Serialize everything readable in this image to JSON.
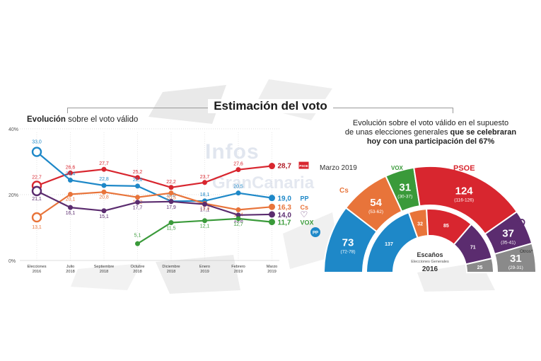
{
  "header": {
    "title": "Estimación del voto",
    "left_subtitle_bold": "Evolución",
    "left_subtitle_rest": "sobre el voto válido",
    "right_subtitle_line1": "Evolución sobre el voto válido en el supuesto",
    "right_subtitle_line2_a": "de unas elecciones generales",
    "right_subtitle_line2_b": "que se celebraran",
    "right_subtitle_line3": "hoy con una participación del 67%"
  },
  "watermark": {
    "line1": "Infos",
    "line2": "GranCanaria"
  },
  "colors": {
    "psoe": "#d8262f",
    "pp": "#1e88c8",
    "cs": "#e8743a",
    "podemos": "#5b2c6f",
    "vox": "#3a9a3a",
    "otros": "#8a8a8a",
    "grid": "#bbbbbb"
  },
  "chart_data": [
    {
      "type": "line",
      "y_ticks": [
        "40%",
        "20%",
        "0%"
      ],
      "ylim": [
        0,
        40
      ],
      "categories": [
        "Elecciones 2016",
        "Julio 2018",
        "Septiembre 2018",
        "Octubre 2018",
        "Diciembre 2018",
        "Enero 2019",
        "Febrero 2019",
        "Marzo 2019"
      ],
      "series": [
        {
          "name": "PSOE",
          "color": "#d8262f",
          "values": [
            22.7,
            26.6,
            27.7,
            25.2,
            22.2,
            23.7,
            27.6,
            28.7
          ],
          "labels": [
            "22,7",
            "26,6",
            "27,7",
            "25,2",
            "22,2",
            "23,7",
            "27,6",
            "28,7"
          ],
          "end_label": "PSOE"
        },
        {
          "name": "PP",
          "color": "#1e88c8",
          "values": [
            33.0,
            24.4,
            22.8,
            22.6,
            18.0,
            18.1,
            20.5,
            19.0
          ],
          "labels": [
            "33,0",
            "24,4",
            "22,8",
            "22,6",
            "18,0",
            "18,1",
            "20,5",
            "19,0"
          ],
          "end_label": "PP"
        },
        {
          "name": "Cs",
          "color": "#e8743a",
          "values": [
            13.1,
            20.1,
            20.8,
            19.2,
            20.5,
            17.3,
            15.4,
            16.3
          ],
          "labels": [
            "13,1",
            "20,1",
            "20,8",
            "19,2",
            "20,5",
            "17,3",
            "15,4",
            "16,3"
          ],
          "end_label": "Cs"
        },
        {
          "name": "Podemos",
          "color": "#5b2c6f",
          "values": [
            21.1,
            16.1,
            15.1,
            17.7,
            17.9,
            17.1,
            13.8,
            14.0
          ],
          "labels": [
            "21,1",
            "16,1",
            "15,1",
            "17,7",
            "17,9",
            "17,1",
            "13,8",
            "14,0"
          ],
          "end_label": "♡"
        },
        {
          "name": "VOX",
          "color": "#3a9a3a",
          "values": [
            null,
            null,
            null,
            5.1,
            11.5,
            12.1,
            12.7,
            11.7
          ],
          "labels": [
            "",
            "",
            "",
            "5,1",
            "11,5",
            "12,1",
            "12,7",
            "11,7"
          ],
          "end_label": "VOX"
        }
      ]
    },
    {
      "type": "pie",
      "subtitle": "Marzo 2019",
      "outer_ring": [
        {
          "party": "PP",
          "seats": 73,
          "range": "(72-78)",
          "color": "#1e88c8"
        },
        {
          "party": "Cs",
          "seats": 54,
          "range": "(53-62)",
          "color": "#e8743a"
        },
        {
          "party": "VOX",
          "seats": 31,
          "range": "(30-37)",
          "color": "#3a9a3a"
        },
        {
          "party": "PSOE",
          "seats": 124,
          "range": "(116-126)",
          "color": "#d8262f"
        },
        {
          "party": "Podemos",
          "seats": 37,
          "range": "(35-41)",
          "color": "#5b2c6f"
        },
        {
          "party": "Otros",
          "seats": 31,
          "range": "(29-31)",
          "color": "#8a8a8a"
        }
      ],
      "inner_ring": [
        {
          "party": "PP",
          "seats": 137,
          "color": "#1e88c8"
        },
        {
          "party": "Cs",
          "seats": 32,
          "color": "#e8743a"
        },
        {
          "party": "PSOE",
          "seats": 85,
          "color": "#d8262f"
        },
        {
          "party": "Podemos",
          "seats": 71,
          "color": "#5b2c6f"
        },
        {
          "party": "Otros",
          "seats": 25,
          "color": "#8a8a8a"
        }
      ],
      "inner_label_title": "Escaños",
      "inner_label_sub": "Elecciones Generales",
      "inner_label_year": "2016",
      "otros_label": "Otros*",
      "party_logos": {
        "psoe": "PSOE",
        "vox": "VOX",
        "pp": "PP",
        "cs": "Cs"
      }
    }
  ]
}
